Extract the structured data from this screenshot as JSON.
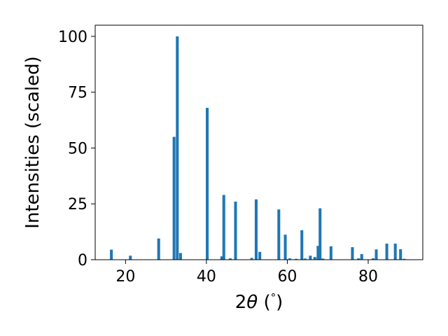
{
  "chart_data": {
    "type": "bar",
    "title": "",
    "xlabel": "2θ (°)",
    "xlabel_parts": {
      "prefix": "2",
      "var": "θ",
      "suffix": " (",
      "unit": "°",
      "close": ")"
    },
    "ylabel": "Intensities (scaled)",
    "xlim": [
      12.5,
      93.5
    ],
    "ylim": [
      0,
      105
    ],
    "xticks": [
      20,
      40,
      60,
      80
    ],
    "yticks": [
      0,
      25,
      50,
      75,
      100
    ],
    "bar_width": 0.7,
    "color": "#1f77b4",
    "grid": false,
    "x": [
      16.5,
      21.2,
      28.2,
      32.0,
      32.8,
      33.6,
      40.2,
      43.8,
      44.3,
      45.9,
      47.2,
      51.2,
      52.3,
      53.2,
      57.9,
      59.5,
      60.6,
      62.2,
      63.6,
      64.4,
      65.7,
      66.8,
      67.6,
      68.1,
      68.8,
      70.8,
      76.1,
      77.6,
      78.4,
      81.2,
      82.0,
      84.6,
      86.7,
      88.0,
      88.9
    ],
    "values": [
      4.5,
      1.8,
      9.5,
      55,
      100,
      3.0,
      68,
      1.5,
      29,
      0.6,
      26,
      0.8,
      27,
      3.5,
      22.5,
      11.2,
      0.6,
      0.4,
      13.2,
      0.5,
      1.8,
      1.2,
      6.2,
      23,
      0.5,
      6.0,
      5.6,
      0.6,
      2.5,
      0.6,
      4.6,
      7.2,
      7.2,
      4.7,
      0.4
    ]
  }
}
